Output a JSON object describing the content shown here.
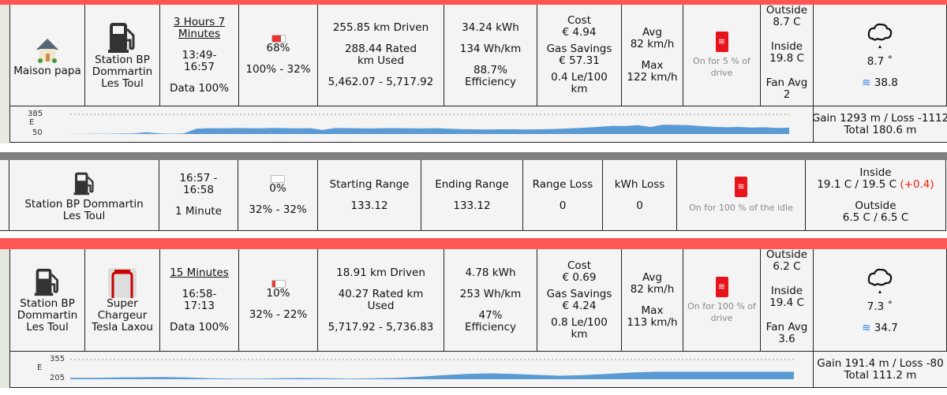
{
  "drive1": {
    "start": "Maison papa",
    "end": "Station BP Dommartin Les Toul",
    "duration": "3 Hours 7 Minutes",
    "time": "13:49-16:57",
    "data": "Data 100%",
    "battery_pct": "68%",
    "battery_level": 0.68,
    "battery_range": "100% - 32%",
    "km_driven": "255.85 km Driven",
    "rated_used": "288.44 Rated km Used",
    "odometer": "5,462.07 - 5,717.92",
    "kwh": "34.24 kWh",
    "wh_km": "134 Wh/km",
    "efficiency_pct": "88.7%",
    "efficiency_label": "Efficiency",
    "cost_label": "Cost",
    "cost": "€ 4.94",
    "gas_label": "Gas Savings",
    "gas": "€ 57.31",
    "le": "0.4 Le/100 km",
    "avg_label": "Avg",
    "avg": "82 km/h",
    "max_label": "Max",
    "max": "122 km/h",
    "heater": "On for 5 % of drive",
    "outside_label": "Outside",
    "outside": "8.7 C",
    "inside_label": "Inside",
    "inside": "19.8 C",
    "fan_label": "Fan Avg",
    "fan": "2",
    "weather_temp": "8.7 ˚",
    "wind": "38.8",
    "elev_axis_label": "E",
    "elev_max": "385",
    "elev_min": "50",
    "elev_gain": "Gain 1293 m / Loss -1112",
    "elev_total": "Total 180.6 m",
    "profile": [
      52,
      52,
      55,
      53,
      58,
      60,
      80,
      62,
      56,
      60,
      140,
      150,
      148,
      152,
      150,
      148,
      155,
      150,
      145,
      150,
      120,
      152,
      150,
      148,
      145,
      150,
      150,
      148,
      145,
      150,
      140,
      135,
      130,
      128,
      130,
      132,
      128,
      130,
      135,
      140,
      150,
      160,
      175,
      190,
      185,
      200,
      170,
      210,
      205,
      200,
      185,
      175,
      165,
      170,
      160,
      165,
      155,
      158
    ]
  },
  "idle": {
    "location": "Station BP Dommartin Les Toul",
    "time": "16:57 - 16:58",
    "duration": "1 Minute",
    "battery_pct": "0%",
    "battery_range": "32% - 32%",
    "start_range_label": "Starting Range",
    "start_range": "133.12",
    "end_range_label": "Ending Range",
    "end_range": "133.12",
    "range_loss_label": "Range Loss",
    "range_loss": "0",
    "kwh_loss_label": "kWh Loss",
    "kwh_loss": "0",
    "heater": "On for 100 % of the idle",
    "inside_label": "Inside",
    "inside": "19.1 C / 19.5 C",
    "inside_delta": "(+0.4)",
    "outside_label": "Outside",
    "outside": "6.5 C / 6.5 C"
  },
  "drive2": {
    "start": "Station BP Dommartin Les Toul",
    "end": "Super Chargeur Tesla Laxou",
    "duration": "15 Minutes",
    "time": "16:58-17:13",
    "data": "Data 100%",
    "battery_pct": "10%",
    "battery_level": 0.1,
    "battery_range": "32% - 22%",
    "km_driven": "18.91 km Driven",
    "rated_used": "40.27 Rated km Used",
    "odometer": "5,717.92 - 5,736.83",
    "kwh": "4.78 kWh",
    "wh_km": "253 Wh/km",
    "efficiency_pct": "47%",
    "efficiency_label": "Efficiency",
    "cost_label": "Cost",
    "cost": "€ 0.69",
    "gas_label": "Gas Savings",
    "gas": "€ 4.24",
    "le": "0.8 Le/100 km",
    "avg_label": "Avg",
    "avg": "82 km/h",
    "max_label": "Max",
    "max": "113 km/h",
    "heater": "On for 100 % of drive",
    "outside_label": "Outside",
    "outside": "6.2 C",
    "inside_label": "Inside",
    "inside": "19.4 C",
    "fan_label": "Fan Avg",
    "fan": "3.6",
    "weather_temp": "7.3 ˚",
    "wind": "34.7",
    "elev_axis_label": "E",
    "elev_max": "355",
    "elev_min": "205",
    "elev_gain": "Gain 191.4 m / Loss -80",
    "elev_total": "Total 111.2 m",
    "profile": [
      215,
      216,
      218,
      220,
      222,
      218,
      212,
      210,
      210,
      212,
      214,
      212,
      210,
      212,
      216,
      224,
      236,
      246,
      250,
      246,
      238,
      232,
      236,
      246,
      256,
      262,
      262,
      262,
      262,
      262,
      262,
      262
    ]
  },
  "colors": {
    "drive_bar": "#ff5555",
    "idle_bar": "#808080",
    "heater": "#e8141b",
    "wind": "#2a7de1",
    "elevation": "#5b9bd5"
  }
}
